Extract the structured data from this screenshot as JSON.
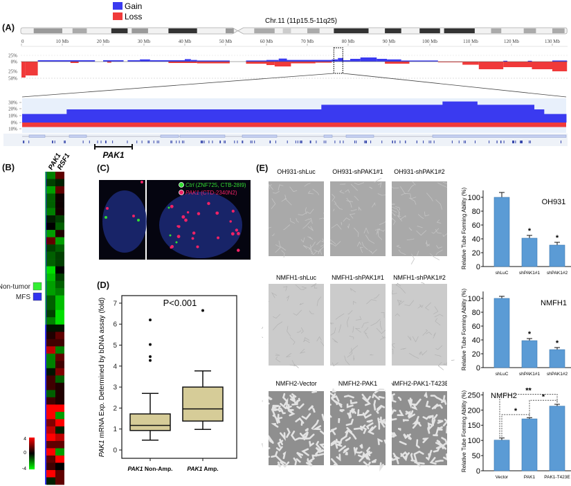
{
  "panel_labels": {
    "a": "(A)",
    "b": "(B)",
    "c": "(C)",
    "d": "(D)",
    "e": "(E)"
  },
  "panel_a": {
    "legend": {
      "gain": "Gain",
      "loss": "Loss"
    },
    "colors": {
      "gain": "#3a3af0",
      "loss": "#f03a3a",
      "zoom_bg": "#e8f0fb"
    },
    "chromosome_label": "Chr.11 (11p15.5-11q25)",
    "ticks_mb": [
      0,
      10,
      20,
      30,
      40,
      50,
      60,
      70,
      80,
      90,
      100,
      110,
      120,
      130
    ],
    "tick_labels": [
      "0",
      "10 Mb",
      "20 Mb",
      "30 Mb",
      "40 Mb",
      "50 Mb",
      "60 Mb",
      "70 Mb",
      "80 Mb",
      "90 Mb",
      "100 Mb",
      "110 Mb",
      "120 Mb",
      "130 Mb"
    ],
    "y_labels": [
      "25%",
      "0%",
      "25%",
      "50%"
    ],
    "chromosome_length_mb": 133.6,
    "centromere_mb": 53,
    "bands": [
      [
        3,
        10,
        "#9a9a9a"
      ],
      [
        12.5,
        16,
        "#aaaaaa"
      ],
      [
        22,
        26,
        "#333333"
      ],
      [
        27,
        31,
        "#9a9a9a"
      ],
      [
        36,
        43,
        "#333333"
      ],
      [
        50,
        52,
        "#999999"
      ],
      [
        57,
        62,
        "#aaaaaa"
      ],
      [
        64,
        66,
        "#cccccc"
      ],
      [
        70,
        73,
        "#aaaaaa"
      ],
      [
        76.5,
        85,
        "#333333"
      ],
      [
        89,
        93,
        "#333333"
      ],
      [
        97.5,
        102.5,
        "#333333"
      ],
      [
        103.5,
        111,
        "#333333"
      ],
      [
        115,
        117.5,
        "#aaaaaa"
      ],
      [
        123,
        126,
        "#aaaaaa"
      ],
      [
        130,
        133,
        "#aaaaaa"
      ]
    ],
    "gain_segments": [
      [
        4,
        18,
        5
      ],
      [
        20,
        25,
        5
      ],
      [
        26,
        29,
        5
      ],
      [
        29,
        31.5,
        8
      ],
      [
        31.5,
        40,
        5
      ],
      [
        40,
        41.5,
        9
      ],
      [
        41.5,
        43,
        6
      ],
      [
        43,
        51,
        4
      ],
      [
        55,
        60,
        4
      ],
      [
        60,
        63,
        6
      ],
      [
        63,
        65,
        11
      ],
      [
        65,
        70,
        6
      ],
      [
        70,
        76,
        6
      ],
      [
        76,
        77.5,
        8
      ],
      [
        77.5,
        78.8,
        13
      ],
      [
        78.8,
        80.5,
        5
      ],
      [
        80.5,
        83,
        10
      ],
      [
        83,
        87,
        15
      ],
      [
        87,
        89.5,
        10
      ],
      [
        89.5,
        93,
        8
      ],
      [
        93,
        102,
        4
      ],
      [
        118,
        119,
        3
      ],
      [
        124,
        125,
        3
      ],
      [
        130,
        133.6,
        4
      ]
    ],
    "loss_segments": [
      [
        0,
        1,
        46
      ],
      [
        1,
        4,
        40
      ],
      [
        12,
        14,
        4
      ],
      [
        21,
        22,
        3
      ],
      [
        36,
        43,
        4
      ],
      [
        43,
        51,
        5
      ],
      [
        55,
        60,
        6
      ],
      [
        60,
        62,
        10
      ],
      [
        62,
        66,
        14
      ],
      [
        66,
        72,
        5
      ],
      [
        72,
        76,
        3
      ],
      [
        89,
        95,
        6
      ],
      [
        102,
        108,
        2
      ],
      [
        108,
        112,
        9
      ],
      [
        112,
        118,
        22
      ],
      [
        118,
        125,
        16
      ],
      [
        125,
        130,
        22
      ],
      [
        130,
        133.6,
        28
      ]
    ],
    "zoom": {
      "region_mb": [
        76.5,
        78.7
      ],
      "y_labels": [
        "30%",
        "20%",
        "10%",
        "0%",
        "10%"
      ],
      "gain_levels": [
        [
          76.5,
          76.68,
          13
        ],
        [
          76.68,
          77.71,
          20
        ],
        [
          77.71,
          78.2,
          27
        ],
        [
          78.2,
          78.34,
          32
        ],
        [
          78.34,
          78.57,
          27
        ],
        [
          78.57,
          78.61,
          20
        ],
        [
          78.61,
          78.7,
          13
        ]
      ],
      "loss_level": 5,
      "gene_label": "PAK1"
    }
  },
  "panel_b": {
    "columns": [
      "PAK1",
      "RSF1"
    ],
    "legend": [
      {
        "label": "Non-tumor",
        "color": "#33ee33"
      },
      {
        "label": "MFS",
        "color": "#3333ee"
      }
    ],
    "scale_labels": [
      "4",
      "0",
      "-4"
    ],
    "values": [
      [
        -2,
        1.5
      ],
      [
        -1,
        -0.5
      ],
      [
        -2.5,
        1.5
      ],
      [
        -1.5,
        0.2
      ],
      [
        -1.5,
        0.2
      ],
      [
        -2,
        0.3
      ],
      [
        -0.5,
        -1
      ],
      [
        0,
        -1.5
      ],
      [
        -2.5,
        0.5
      ],
      [
        1.5,
        -2.5
      ],
      [
        -1,
        -1.5
      ],
      [
        -1.5,
        -1
      ],
      [
        -1.5,
        -1
      ],
      [
        -3.5,
        0
      ],
      [
        -3,
        -1
      ],
      [
        -2.5,
        -1.5
      ],
      [
        -2.5,
        -2
      ],
      [
        -1.5,
        -3
      ],
      [
        -1.5,
        -3
      ],
      [
        -1,
        -3.5
      ],
      [
        -2,
        -3.5
      ],
      [
        -0.3,
        -0.3
      ],
      [
        0.5,
        1.5
      ],
      [
        1,
        1
      ],
      [
        3,
        -2
      ],
      [
        -2,
        1.5
      ],
      [
        -2,
        1
      ],
      [
        -0.3,
        2
      ],
      [
        1,
        -1.5
      ],
      [
        1,
        0.5
      ],
      [
        -1.5,
        0.5
      ],
      [
        1,
        0.5
      ],
      [
        4,
        4
      ],
      [
        4,
        -2.5
      ],
      [
        2,
        4
      ],
      [
        3,
        -0.5
      ],
      [
        4,
        3
      ],
      [
        1.5,
        1.5
      ],
      [
        4,
        -2.5
      ],
      [
        1.5,
        4
      ],
      [
        1,
        0
      ],
      [
        4,
        1.5
      ],
      [
        -0.5,
        1.5
      ]
    ]
  },
  "panel_c": {
    "legend": [
      {
        "label_italic": "Ctrl",
        "label": " (ZNF725, CTB-28I9)",
        "color": "#33dd33"
      },
      {
        "label_italic": "PAK1",
        "label": " (CTD-2340N2)",
        "color": "#ee2266"
      }
    ]
  },
  "chart_data": [
    {
      "type": "box",
      "panel": "D",
      "annotation": "P<0.001",
      "ylabel_italic": "PAK1",
      "ylabel": " mRNA Exp. Determined by bDNA assay (fold)",
      "ylim": [
        0,
        7
      ],
      "yticks": [
        0,
        1,
        2,
        3,
        4,
        5,
        6,
        7
      ],
      "categories": [
        {
          "italic": "PAK1",
          "label": " Non-Amp."
        },
        {
          "italic": "PAK1",
          "label": " Amp."
        }
      ],
      "boxes": [
        {
          "whisker_low": 0.47,
          "q1": 0.93,
          "median": 1.17,
          "q3": 1.72,
          "whisker_high": 2.7,
          "outliers": [
            4.27,
            4.45,
            5.03,
            6.2
          ]
        },
        {
          "whisker_low": 0.98,
          "q1": 1.38,
          "median": 1.96,
          "q3": 3.0,
          "whisker_high": 3.77,
          "outliers": [
            6.65
          ]
        }
      ],
      "box_color": "#d6cc98"
    },
    {
      "type": "bar",
      "panel": "E",
      "title": "OH931",
      "ylabel": "Relative Tube Forming Ability (%)",
      "ylim": [
        0,
        110
      ],
      "yticks": [
        0,
        20,
        40,
        60,
        80,
        100
      ],
      "categories": [
        "shLuC",
        "shPAK1#1",
        "shPAK1#2"
      ],
      "values": [
        100,
        41,
        31
      ],
      "errors": [
        7,
        4,
        4
      ],
      "significance": [
        "",
        "*",
        "*"
      ],
      "color": "#5b9bd5"
    },
    {
      "type": "bar",
      "panel": "E",
      "title": "NMFH1",
      "ylabel": "Relative Tube Forming Ability (%)",
      "ylim": [
        0,
        110
      ],
      "yticks": [
        0,
        20,
        40,
        60,
        80,
        100
      ],
      "categories": [
        "shLuC",
        "shPAK1#1",
        "shPAK1#2"
      ],
      "values": [
        100,
        39,
        26
      ],
      "errors": [
        3,
        3,
        3
      ],
      "significance": [
        "",
        "*",
        "*"
      ],
      "color": "#5b9bd5"
    },
    {
      "type": "bar",
      "panel": "E",
      "title": "NMFH2",
      "ylabel": "Relative Tube Forming Ability (%)",
      "ylim": [
        0,
        260
      ],
      "yticks": [
        0,
        50,
        100,
        150,
        200,
        250
      ],
      "categories": [
        "Vector",
        "PAK1",
        "PAK1-T423E"
      ],
      "values": [
        101,
        171,
        213
      ],
      "errors": [
        7,
        4,
        6
      ],
      "brackets": [
        {
          "from": 0,
          "to": 1,
          "label": "*"
        },
        {
          "from": 1,
          "to": 2,
          "label": "*"
        },
        {
          "from": 0,
          "to": 2,
          "label": "**"
        }
      ],
      "color": "#5b9bd5"
    }
  ],
  "panel_e": {
    "rows": [
      [
        "OH931-shLuc",
        "OH931-shPAK1#1",
        "OH931-shPAK1#2"
      ],
      [
        "NMFH1-shLuc",
        "NMFH1-shPAK1#1",
        "NMFH1-shPAK1#2"
      ],
      [
        "NMFH2-Vector",
        "NMFH2-PAK1",
        "NMFH2-PAK1-T423E"
      ]
    ]
  }
}
